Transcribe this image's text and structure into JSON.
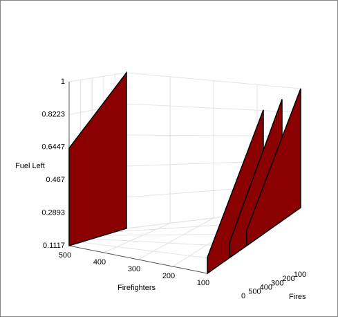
{
  "chart_data": {
    "type": "surface3d",
    "zlabel": "Fuel Left",
    "xlabel": "Firefighters",
    "ylabel": "Fires",
    "zlim": [
      0.1117,
      1
    ],
    "zticks": [
      0.1117,
      0.2893,
      0.467,
      0.6447,
      0.8223,
      1
    ],
    "xlim": [
      500,
      100
    ],
    "xticks": [
      500,
      400,
      300,
      200,
      100
    ],
    "ylim": [
      0,
      500
    ],
    "yticks": [
      0,
      500,
      400,
      300,
      200,
      100
    ],
    "color": "#8b0000",
    "grid": true,
    "surfaces": [
      {
        "firefighters": [
          500,
          500,
          500,
          500
        ],
        "fires": [
          0,
          0,
          500,
          500
        ],
        "fuel": [
          0.1117,
          0.64,
          1,
          0.1117
        ]
      },
      {
        "firefighters": [
          100,
          100,
          100,
          100
        ],
        "fires": [
          0,
          0,
          300,
          300
        ],
        "fuel": [
          0.1117,
          0.22,
          1,
          0.1117
        ]
      },
      {
        "firefighters": [
          100,
          100,
          100,
          100
        ],
        "fires": [
          120,
          120,
          400,
          400
        ],
        "fuel": [
          0.1117,
          0.22,
          1,
          0.1117
        ]
      },
      {
        "firefighters": [
          100,
          100,
          100,
          100
        ],
        "fires": [
          210,
          210,
          500,
          500
        ],
        "fuel": [
          0.1117,
          0.22,
          1,
          0.1117
        ]
      }
    ]
  }
}
